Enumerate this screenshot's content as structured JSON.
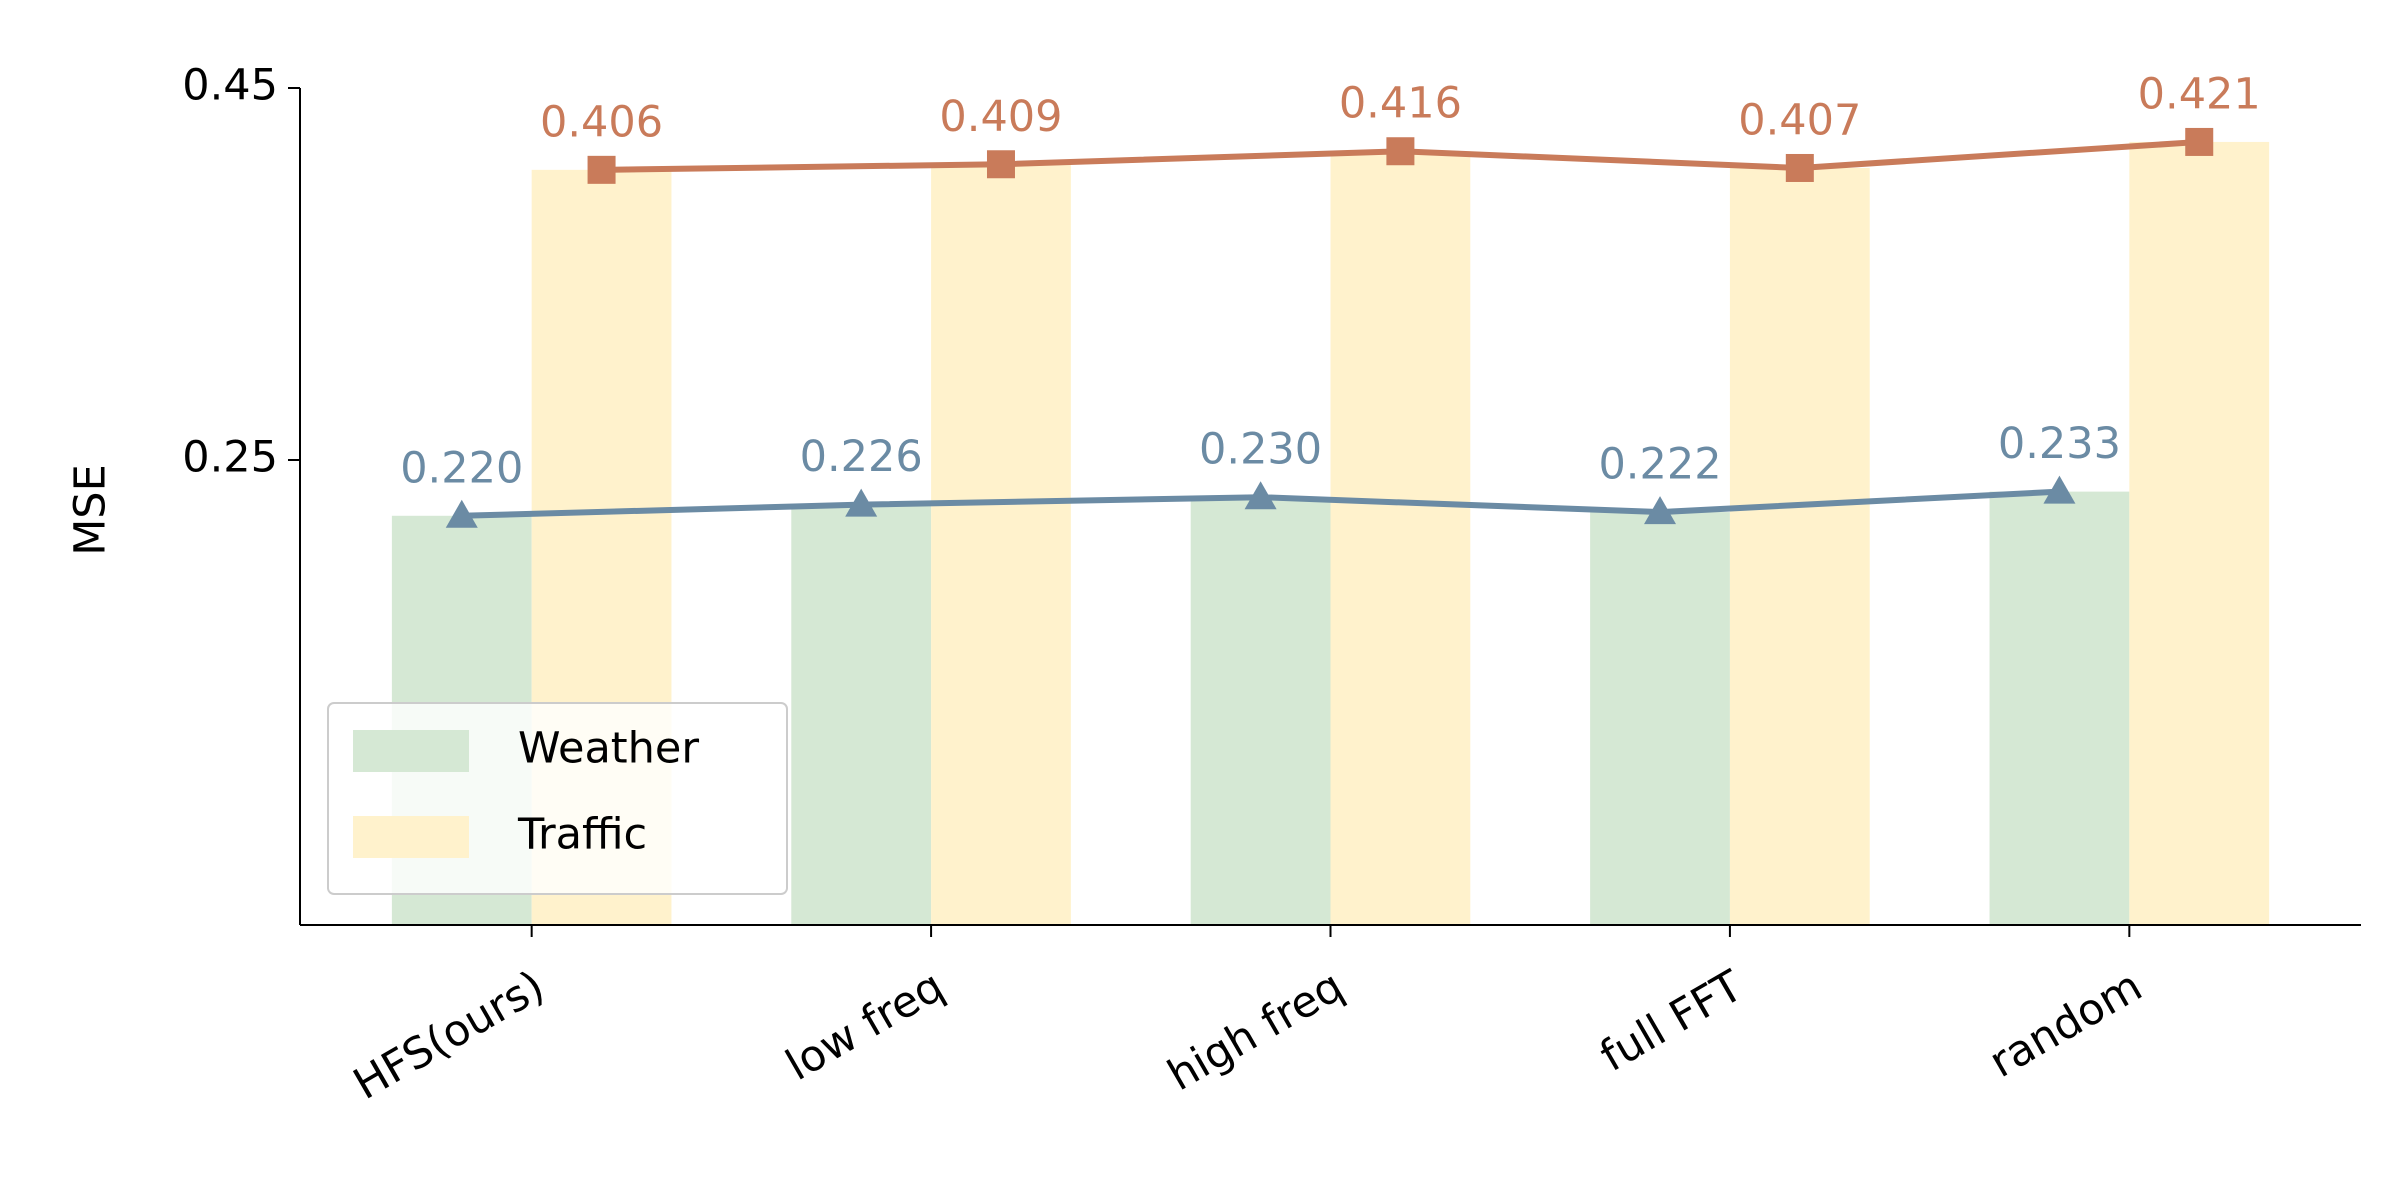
{
  "chart_data": {
    "type": "bar_line",
    "y_label": "MSE",
    "categories": [
      "HFS(ours)",
      "low freq",
      "high freq",
      "full FFT",
      "random"
    ],
    "series": [
      {
        "name": "Weather",
        "color": "#d5e8d4",
        "line_color": "#6b8ba4",
        "marker": "triangle",
        "values": [
          0.22,
          0.226,
          0.23,
          0.222,
          0.233
        ],
        "value_labels": [
          "0.220",
          "0.226",
          "0.230",
          "0.222",
          "0.233"
        ]
      },
      {
        "name": "Traffic",
        "color": "#fff2cc",
        "line_color": "#c97b5a",
        "marker": "square",
        "values": [
          0.406,
          0.409,
          0.416,
          0.407,
          0.421
        ],
        "value_labels": [
          "0.406",
          "0.409",
          "0.416",
          "0.407",
          "0.421"
        ]
      }
    ],
    "ylim": [
      0,
      0.45
    ],
    "yticks": [
      0.25,
      0.45
    ],
    "legend": "lower left",
    "grid": false
  }
}
